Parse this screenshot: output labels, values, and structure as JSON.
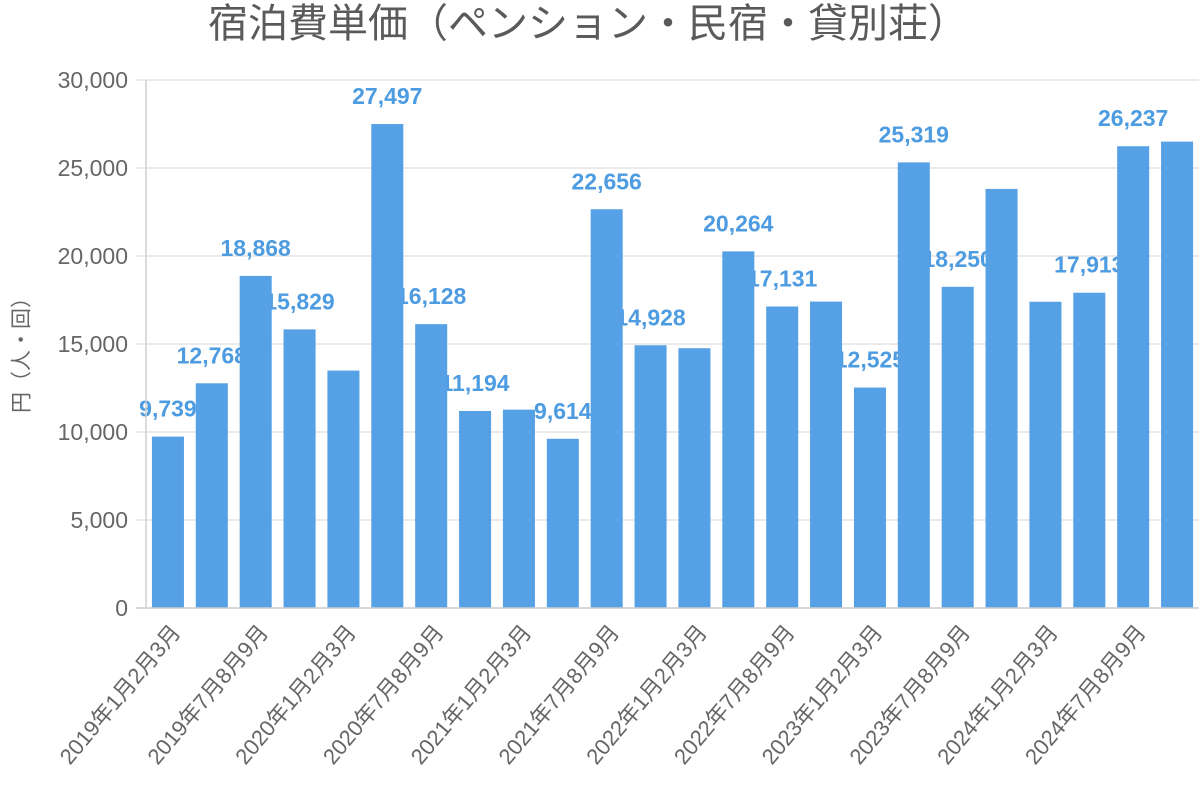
{
  "chart_data": {
    "type": "bar",
    "title": "宿泊費単価（ペンション・民宿・貸別荘）",
    "xlabel": "",
    "ylabel": "円（人・回）",
    "ylim": [
      0,
      30000
    ],
    "y_ticks": [
      0,
      5000,
      10000,
      15000,
      20000,
      25000,
      30000
    ],
    "y_tick_labels": [
      "0",
      "5,000",
      "10,000",
      "15,000",
      "20,000",
      "25,000",
      "30,000"
    ],
    "categories": [
      "2019年1月2月3月",
      "",
      "2019年7月8月9月",
      "",
      "2020年1月2月3月",
      "",
      "2020年7月8月9月",
      "",
      "2021年1月2月3月",
      "",
      "2021年7月8月9月",
      "",
      "2022年1月2月3月",
      "",
      "2022年7月8月9月",
      "",
      "2023年1月2月3月",
      "",
      "2023年7月8月9月",
      "",
      "2024年1月2月3月",
      "",
      "2024年7月8月9月",
      ""
    ],
    "values": [
      9739,
      12768,
      18868,
      15829,
      13490,
      27497,
      16128,
      11194,
      11270,
      9614,
      22656,
      14928,
      14760,
      20264,
      17131,
      17410,
      12525,
      25319,
      18250,
      23810,
      17400,
      17913,
      26237,
      26500
    ],
    "data_labels": [
      "9,739",
      "12,768",
      "18,868",
      "15,829",
      "",
      "27,497",
      "16,128",
      "11,194",
      "",
      "9,614",
      "22,656",
      "14,928",
      "",
      "20,264",
      "17,131",
      "",
      "12,525",
      "25,319",
      "18,250",
      "",
      "",
      "17,913",
      "26,237",
      ""
    ],
    "grid": true,
    "show_legend": false,
    "colors": {
      "bar": "#56a0e5",
      "data_label": "#4d9be0",
      "text": "#666666",
      "grid": "#e3e3e3"
    }
  }
}
